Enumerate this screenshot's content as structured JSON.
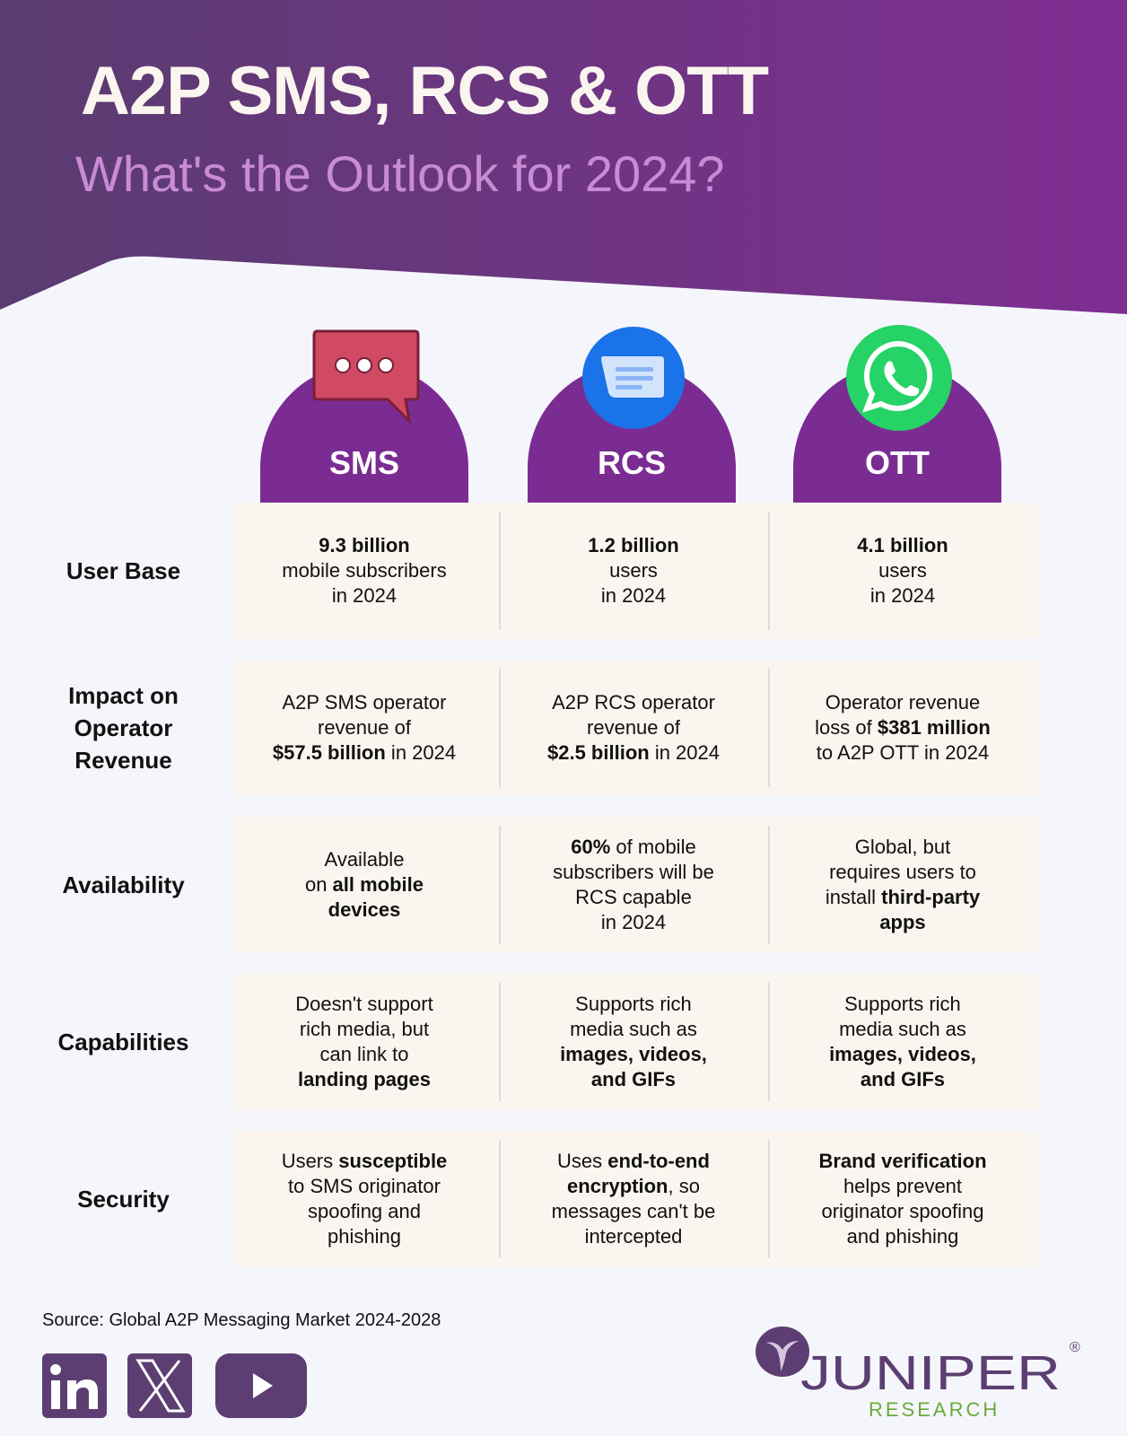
{
  "header": {
    "title": "A2P SMS, RCS & OTT",
    "subtitle": "What's the Outlook for 2024?"
  },
  "colors": {
    "header_start": "#5a3c70",
    "header_end": "#7f2e92",
    "arch": "#7b2c93",
    "cell_bg": "#faf5ef",
    "sms_icon": "#d04a63",
    "rcs_icon": "#1a73e8",
    "ott_icon": "#25d366",
    "logo_purple": "#5c3e72",
    "logo_green": "#6aab3a"
  },
  "columns": [
    {
      "label": "SMS",
      "icon": "chat-bubble-icon"
    },
    {
      "label": "RCS",
      "icon": "google-messages-icon"
    },
    {
      "label": "OTT",
      "icon": "whatsapp-icon"
    }
  ],
  "rows": [
    {
      "label": "User Base",
      "cells": [
        [
          [
            {
              "t": "9.3 billion",
              "b": true
            }
          ],
          [
            {
              "t": "mobile subscribers"
            }
          ],
          [
            {
              "t": "in 2024"
            }
          ]
        ],
        [
          [
            {
              "t": "1.2 billion",
              "b": true
            }
          ],
          [
            {
              "t": "users"
            }
          ],
          [
            {
              "t": "in 2024"
            }
          ]
        ],
        [
          [
            {
              "t": "4.1 billion",
              "b": true
            }
          ],
          [
            {
              "t": "users"
            }
          ],
          [
            {
              "t": "in 2024"
            }
          ]
        ]
      ]
    },
    {
      "label": "Impact on Operator Revenue",
      "cells": [
        [
          [
            {
              "t": "A2P SMS operator"
            }
          ],
          [
            {
              "t": "revenue of"
            }
          ],
          [
            {
              "t": "$57.5 billion",
              "b": true
            },
            {
              "t": " in 2024"
            }
          ]
        ],
        [
          [
            {
              "t": "A2P RCS operator"
            }
          ],
          [
            {
              "t": "revenue of"
            }
          ],
          [
            {
              "t": "$2.5 billion",
              "b": true
            },
            {
              "t": " in 2024"
            }
          ]
        ],
        [
          [
            {
              "t": "Operator revenue"
            }
          ],
          [
            {
              "t": "loss of "
            },
            {
              "t": "$381 million",
              "b": true
            }
          ],
          [
            {
              "t": "to A2P OTT in 2024"
            }
          ]
        ]
      ]
    },
    {
      "label": "Availability",
      "cells": [
        [
          [
            {
              "t": "Available"
            }
          ],
          [
            {
              "t": "on "
            },
            {
              "t": "all mobile",
              "b": true
            }
          ],
          [
            {
              "t": "devices",
              "b": true
            }
          ]
        ],
        [
          [
            {
              "t": "60%",
              "b": true
            },
            {
              "t": " of mobile"
            }
          ],
          [
            {
              "t": "subscribers will be"
            }
          ],
          [
            {
              "t": "RCS capable"
            }
          ],
          [
            {
              "t": "in 2024"
            }
          ]
        ],
        [
          [
            {
              "t": "Global, but"
            }
          ],
          [
            {
              "t": "requires users to"
            }
          ],
          [
            {
              "t": "install "
            },
            {
              "t": "third-party",
              "b": true
            }
          ],
          [
            {
              "t": "apps",
              "b": true
            }
          ]
        ]
      ]
    },
    {
      "label": "Capabilities",
      "cells": [
        [
          [
            {
              "t": "Doesn't support"
            }
          ],
          [
            {
              "t": "rich media, but"
            }
          ],
          [
            {
              "t": "can link to"
            }
          ],
          [
            {
              "t": "landing pages",
              "b": true
            }
          ]
        ],
        [
          [
            {
              "t": "Supports rich"
            }
          ],
          [
            {
              "t": "media such as"
            }
          ],
          [
            {
              "t": "images, videos,",
              "b": true
            }
          ],
          [
            {
              "t": "and GIFs",
              "b": true
            }
          ]
        ],
        [
          [
            {
              "t": "Supports rich"
            }
          ],
          [
            {
              "t": "media such as"
            }
          ],
          [
            {
              "t": "images, videos,",
              "b": true
            }
          ],
          [
            {
              "t": "and GIFs",
              "b": true
            }
          ]
        ]
      ]
    },
    {
      "label": "Security",
      "cells": [
        [
          [
            {
              "t": "Users "
            },
            {
              "t": "susceptible",
              "b": true
            }
          ],
          [
            {
              "t": "to SMS originator"
            }
          ],
          [
            {
              "t": "spoofing and"
            }
          ],
          [
            {
              "t": "phishing"
            }
          ]
        ],
        [
          [
            {
              "t": "Uses "
            },
            {
              "t": "end-to-end",
              "b": true
            }
          ],
          [
            {
              "t": "encryption",
              "b": true
            },
            {
              "t": ", so"
            }
          ],
          [
            {
              "t": "messages can't be"
            }
          ],
          [
            {
              "t": "intercepted"
            }
          ]
        ],
        [
          [
            {
              "t": "Brand verification",
              "b": true
            }
          ],
          [
            {
              "t": "helps prevent"
            }
          ],
          [
            {
              "t": "originator spoofing"
            }
          ],
          [
            {
              "t": "and phishing"
            }
          ]
        ]
      ]
    }
  ],
  "footer": {
    "source": "Source: Global A2P Messaging Market 2024-2028",
    "social": [
      "linkedin-icon",
      "x-icon",
      "youtube-icon"
    ],
    "logo_main": "JUNIPER",
    "logo_sub": "RESEARCH"
  }
}
